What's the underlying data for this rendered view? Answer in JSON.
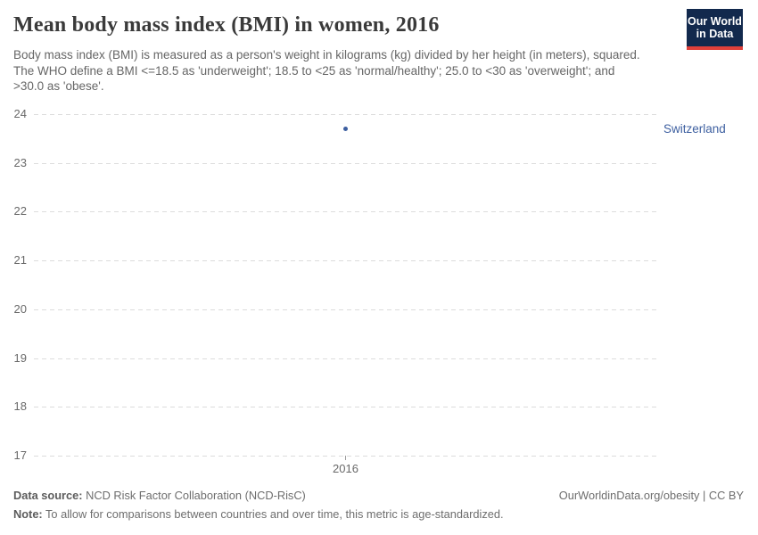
{
  "header": {
    "title": "Mean body mass index (BMI) in women, 2016",
    "subtitle": "Body mass index (BMI) is measured as a person's weight in kilograms (kg) divided by her height (in meters), squared. The WHO define a BMI <=18.5 as 'underweight'; 18.5 to <25 as 'normal/healthy'; 25.0 to <30 as 'overweight'; and >30.0 as 'obese'."
  },
  "logo": {
    "line1": "Our World",
    "line2": "in Data",
    "background_color": "#12294d",
    "stripe_color": "#e0403a"
  },
  "chart_data": {
    "type": "scatter",
    "title": "Mean body mass index (BMI) in women, 2016",
    "x": [
      2016
    ],
    "xtick_labels": [
      "2016"
    ],
    "series": [
      {
        "name": "Switzerland",
        "x": 2016,
        "value": 23.7,
        "color": "#3d5fa0"
      }
    ],
    "ylim": [
      17,
      24
    ],
    "yticks": [
      24,
      23,
      22,
      21,
      20,
      19,
      18,
      17
    ],
    "xlabel": "",
    "ylabel": "",
    "grid": "horizontal-dashed",
    "legend_position": "entity-label-right-of-plot",
    "gridline_color": "#dcdcdc",
    "tick_label_color": "#696969"
  },
  "footer": {
    "source_label": "Data source:",
    "source_text": " NCD Risk Factor Collaboration (NCD-RisC)",
    "rights": "OurWorldinData.org/obesity | CC BY",
    "note_label": "Note:",
    "note_text": " To allow for comparisons between countries and over time, this metric is age-standardized."
  }
}
